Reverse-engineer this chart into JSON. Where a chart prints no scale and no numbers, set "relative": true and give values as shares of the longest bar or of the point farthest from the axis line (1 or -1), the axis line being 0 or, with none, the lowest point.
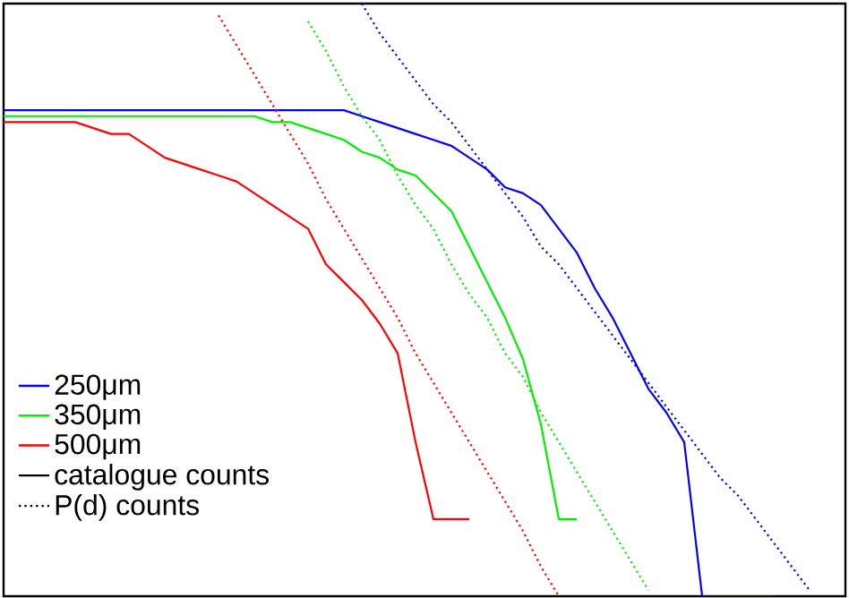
{
  "chart_data": {
    "type": "line",
    "relative": true,
    "tick_labels": false,
    "legend": "left",
    "marker": "none",
    "categories": [
      null,
      null,
      null,
      null,
      null,
      null,
      null,
      null,
      null,
      null,
      null,
      null,
      null,
      null,
      null,
      null,
      null,
      null,
      null,
      null,
      null,
      null,
      null,
      null,
      null,
      null,
      null,
      null,
      null,
      null,
      null,
      null,
      null,
      null,
      null,
      null,
      null,
      null,
      null,
      null,
      null,
      null,
      null,
      null,
      null,
      null,
      null,
      null
    ],
    "series": [
      {
        "name": "250μm",
        "color": "#0000ff",
        "line_style": "solid",
        "values": [
          0.82,
          0.82,
          0.82,
          0.82,
          0.82,
          0.82,
          0.82,
          0.82,
          0.82,
          0.82,
          0.82,
          0.82,
          0.82,
          0.82,
          0.82,
          0.82,
          0.82,
          0.82,
          0.82,
          0.82,
          0.81,
          0.8,
          0.79,
          0.78,
          0.77,
          0.76,
          0.74,
          0.72,
          0.69,
          0.68,
          0.66,
          0.62,
          0.58,
          0.52,
          0.47,
          0.41,
          0.35,
          0.31,
          0.26,
          0,
          0,
          0,
          0,
          0,
          null,
          null,
          null,
          null
        ]
      },
      {
        "name": "350μm",
        "color": "#00ee00",
        "line_style": "solid",
        "values": [
          0.81,
          0.81,
          0.81,
          0.81,
          0.81,
          0.81,
          0.81,
          0.81,
          0.81,
          0.81,
          0.81,
          0.81,
          0.81,
          0.81,
          0.81,
          0.8,
          0.8,
          0.79,
          0.78,
          0.77,
          0.75,
          0.74,
          0.72,
          0.71,
          0.68,
          0.65,
          0.59,
          0.53,
          0.47,
          0.4,
          0.29,
          0.13,
          0.13,
          null,
          null,
          null,
          null,
          null,
          null,
          null,
          null,
          null,
          null,
          null,
          null,
          null,
          null,
          null
        ]
      },
      {
        "name": "500μm",
        "color": "#ff0000",
        "line_style": "solid",
        "values": [
          0.8,
          0.8,
          0.8,
          0.8,
          0.8,
          0.79,
          0.78,
          0.78,
          0.76,
          0.74,
          0.73,
          0.72,
          0.71,
          0.7,
          0.68,
          0.66,
          0.64,
          0.62,
          0.56,
          0.53,
          0.5,
          0.46,
          0.41,
          0.26,
          0.13,
          0.13,
          0.13,
          null,
          null,
          null,
          null,
          null,
          null,
          null,
          null,
          null,
          null,
          null,
          null,
          null,
          null,
          null,
          null,
          null,
          null,
          null,
          null,
          null
        ]
      },
      {
        "name": "catalogue counts",
        "color": "#000000",
        "line_style": "solid",
        "values": [
          null,
          null,
          null,
          null,
          null,
          null,
          null,
          null,
          null,
          null,
          null,
          null,
          null,
          null,
          null,
          null,
          null,
          null,
          null,
          null,
          null,
          null,
          null,
          null,
          null,
          null,
          null,
          null,
          null,
          null,
          null,
          null,
          null,
          null,
          null,
          null,
          null,
          null,
          null,
          null,
          null,
          null,
          null,
          null,
          null,
          null,
          null,
          null
        ]
      },
      {
        "name": "P(d) counts",
        "color": "#000000",
        "line_style": "dotted",
        "values": [
          null,
          null,
          null,
          null,
          null,
          null,
          null,
          null,
          null,
          null,
          null,
          null,
          null,
          null,
          null,
          null,
          null,
          null,
          null,
          null,
          null,
          null,
          null,
          null,
          null,
          null,
          null,
          null,
          null,
          null,
          null,
          null,
          null,
          null,
          null,
          null,
          null,
          null,
          null,
          null,
          null,
          null,
          null,
          null,
          null,
          null,
          null,
          null
        ]
      },
      {
        "color": "#0000ff",
        "line_style": "dotted",
        "values": [
          null,
          null,
          null,
          null,
          null,
          null,
          null,
          null,
          null,
          null,
          null,
          null,
          null,
          null,
          null,
          null,
          null,
          null,
          null,
          null,
          1.0,
          0.95,
          0.91,
          0.87,
          0.83,
          0.8,
          0.76,
          0.72,
          0.68,
          0.64,
          0.59,
          0.56,
          0.52,
          0.48,
          0.44,
          0.4,
          0.36,
          0.32,
          0.28,
          0.24,
          0.2,
          0.17,
          0.13,
          0.09,
          0.05,
          0.01,
          null,
          null
        ]
      },
      {
        "color": "#00ee00",
        "line_style": "dotted",
        "values": [
          null,
          null,
          null,
          null,
          null,
          null,
          null,
          null,
          null,
          null,
          null,
          null,
          null,
          null,
          null,
          null,
          null,
          0.97,
          0.92,
          0.86,
          0.81,
          0.77,
          0.71,
          0.66,
          0.62,
          0.56,
          0.51,
          0.47,
          0.41,
          0.37,
          0.31,
          0.26,
          0.21,
          0.16,
          0.11,
          0.06,
          0.01,
          null,
          null,
          null,
          null,
          null,
          null,
          null,
          null,
          null,
          null,
          null
        ]
      },
      {
        "color": "#ff0000",
        "line_style": "dotted",
        "values": [
          null,
          null,
          null,
          null,
          null,
          null,
          null,
          null,
          null,
          null,
          null,
          null,
          0.98,
          0.93,
          0.88,
          0.83,
          0.78,
          0.73,
          0.67,
          0.62,
          0.57,
          0.52,
          0.47,
          0.41,
          0.36,
          0.31,
          0.26,
          0.21,
          0.16,
          0.11,
          0.05,
          0.0,
          null,
          null,
          null,
          null,
          null,
          null,
          null,
          null,
          null,
          null,
          null,
          null,
          null,
          null,
          null,
          null
        ]
      }
    ]
  }
}
